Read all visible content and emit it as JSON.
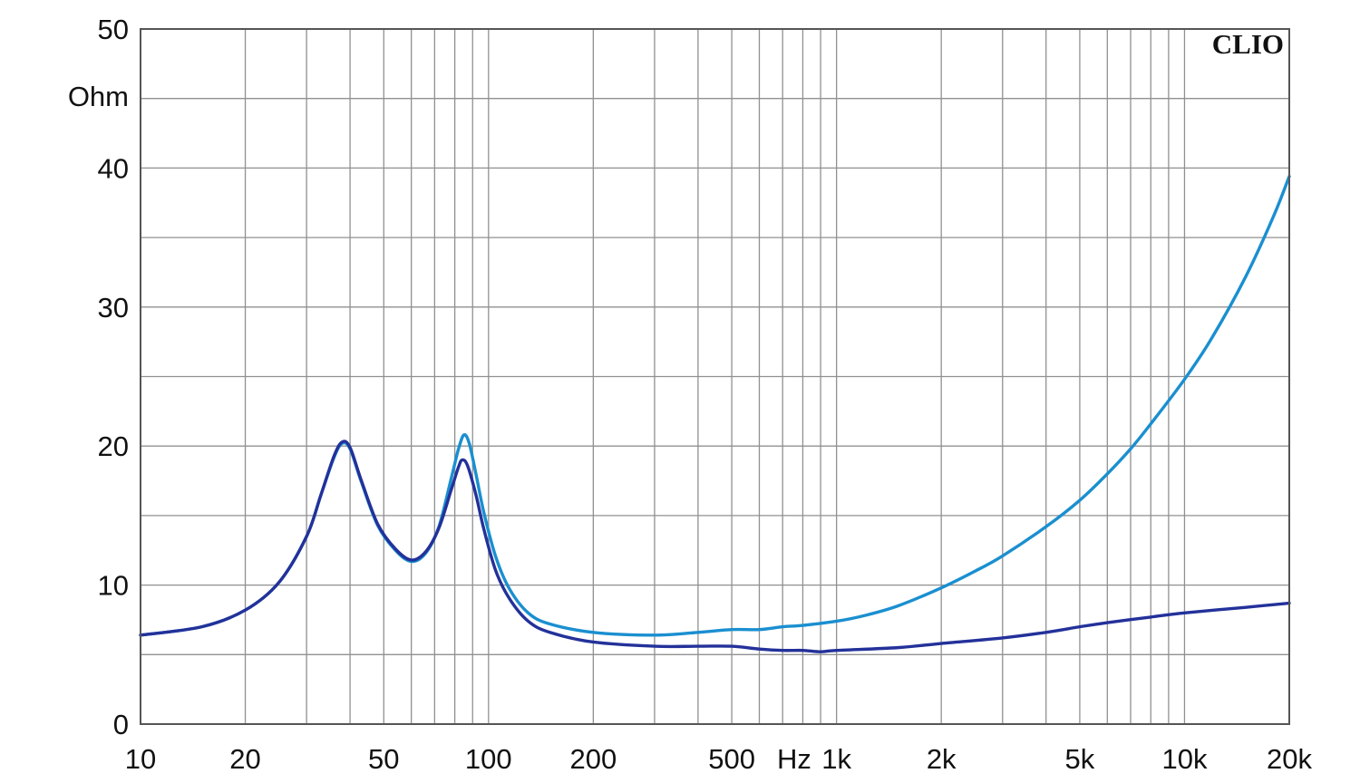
{
  "chart_data": {
    "type": "line",
    "title": "",
    "xlabel": "Hz",
    "ylabel": "Ohm",
    "x_scale": "log",
    "xlim": [
      10,
      20000
    ],
    "ylim": [
      0,
      50
    ],
    "grid": true,
    "watermark": "CLIO",
    "x_tick_labels": [
      {
        "value": 10,
        "label": "10"
      },
      {
        "value": 20,
        "label": "20"
      },
      {
        "value": 50,
        "label": "50"
      },
      {
        "value": 100,
        "label": "100"
      },
      {
        "value": 200,
        "label": "200"
      },
      {
        "value": 500,
        "label": "500"
      },
      {
        "value": 1000,
        "label": "1k"
      },
      {
        "value": 2000,
        "label": "2k"
      },
      {
        "value": 5000,
        "label": "5k"
      },
      {
        "value": 10000,
        "label": "10k"
      },
      {
        "value": 20000,
        "label": "20k"
      }
    ],
    "y_tick_labels": [
      {
        "value": 0,
        "label": "0"
      },
      {
        "value": 10,
        "label": "10"
      },
      {
        "value": 20,
        "label": "20"
      },
      {
        "value": 30,
        "label": "30"
      },
      {
        "value": 40,
        "label": "40"
      },
      {
        "value": 50,
        "label": "50"
      }
    ],
    "series": [
      {
        "color": "#1a8fd0",
        "points": [
          [
            10,
            6.4
          ],
          [
            15,
            7.0
          ],
          [
            20,
            8.2
          ],
          [
            25,
            10.2
          ],
          [
            30,
            13.5
          ],
          [
            33,
            16.5
          ],
          [
            36,
            19.2
          ],
          [
            38,
            20.2
          ],
          [
            40,
            19.8
          ],
          [
            43,
            17.5
          ],
          [
            48,
            14.3
          ],
          [
            54,
            12.5
          ],
          [
            60,
            11.7
          ],
          [
            66,
            12.3
          ],
          [
            72,
            14.2
          ],
          [
            78,
            17.6
          ],
          [
            82,
            19.8
          ],
          [
            85,
            20.8
          ],
          [
            88,
            20.2
          ],
          [
            92,
            18.0
          ],
          [
            97,
            15.2
          ],
          [
            105,
            12.0
          ],
          [
            115,
            9.7
          ],
          [
            130,
            8.0
          ],
          [
            150,
            7.2
          ],
          [
            200,
            6.6
          ],
          [
            300,
            6.4
          ],
          [
            400,
            6.6
          ],
          [
            500,
            6.8
          ],
          [
            600,
            6.8
          ],
          [
            700,
            7.0
          ],
          [
            800,
            7.1
          ],
          [
            1000,
            7.4
          ],
          [
            1200,
            7.8
          ],
          [
            1500,
            8.5
          ],
          [
            2000,
            9.8
          ],
          [
            2500,
            11.0
          ],
          [
            3000,
            12.1
          ],
          [
            4000,
            14.2
          ],
          [
            5000,
            16.1
          ],
          [
            6000,
            18.0
          ],
          [
            7000,
            19.8
          ],
          [
            8000,
            21.6
          ],
          [
            10000,
            24.8
          ],
          [
            12000,
            27.8
          ],
          [
            15000,
            32.2
          ],
          [
            18000,
            36.5
          ],
          [
            20000,
            39.4
          ]
        ]
      },
      {
        "color": "#23319a",
        "points": [
          [
            10,
            6.4
          ],
          [
            15,
            7.0
          ],
          [
            20,
            8.2
          ],
          [
            25,
            10.2
          ],
          [
            30,
            13.5
          ],
          [
            33,
            16.5
          ],
          [
            36,
            19.3
          ],
          [
            38,
            20.3
          ],
          [
            40,
            19.9
          ],
          [
            43,
            17.6
          ],
          [
            48,
            14.4
          ],
          [
            54,
            12.6
          ],
          [
            60,
            11.8
          ],
          [
            66,
            12.4
          ],
          [
            72,
            14.1
          ],
          [
            78,
            16.8
          ],
          [
            82,
            18.5
          ],
          [
            84,
            19.0
          ],
          [
            87,
            18.6
          ],
          [
            92,
            16.5
          ],
          [
            97,
            14.0
          ],
          [
            105,
            11.0
          ],
          [
            115,
            9.0
          ],
          [
            130,
            7.4
          ],
          [
            150,
            6.6
          ],
          [
            200,
            5.9
          ],
          [
            300,
            5.6
          ],
          [
            400,
            5.6
          ],
          [
            500,
            5.6
          ],
          [
            600,
            5.4
          ],
          [
            700,
            5.3
          ],
          [
            800,
            5.3
          ],
          [
            900,
            5.2
          ],
          [
            1000,
            5.3
          ],
          [
            1500,
            5.5
          ],
          [
            2000,
            5.8
          ],
          [
            3000,
            6.2
          ],
          [
            4000,
            6.6
          ],
          [
            5000,
            7.0
          ],
          [
            6000,
            7.3
          ],
          [
            8000,
            7.7
          ],
          [
            10000,
            8.0
          ],
          [
            15000,
            8.4
          ],
          [
            20000,
            8.7
          ]
        ]
      }
    ]
  }
}
